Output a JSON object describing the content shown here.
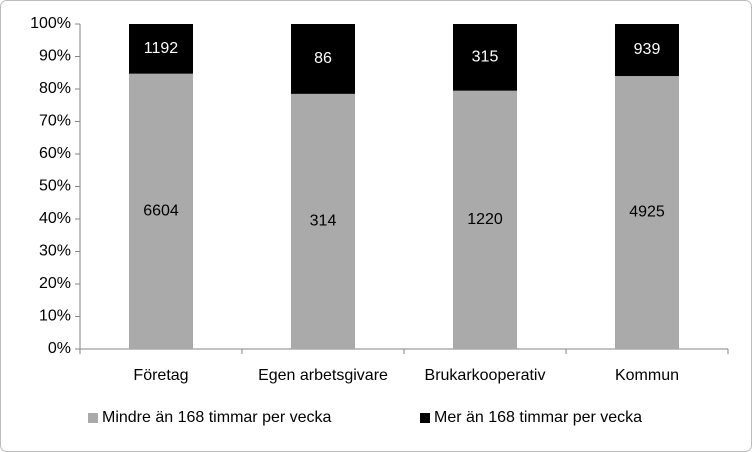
{
  "chart_data": {
    "type": "bar",
    "stacked": "percent",
    "categories": [
      "Företag",
      "Egen arbetsgivare",
      "Brukarkooperativ",
      "Kommun"
    ],
    "series": [
      {
        "name": "Mindre än 168 timmar per vecka",
        "color": "#aaaaaa",
        "label_color": "#000000",
        "values": [
          6604,
          314,
          1220,
          4925
        ]
      },
      {
        "name": "Mer än 168 timmar per vecka",
        "color": "#000000",
        "label_color": "#ffffff",
        "values": [
          1192,
          86,
          315,
          939
        ]
      }
    ],
    "ylim": [
      0,
      100
    ],
    "yticks": [
      {
        "value": 0,
        "label": "0%"
      },
      {
        "value": 10,
        "label": "10%"
      },
      {
        "value": 20,
        "label": "20%"
      },
      {
        "value": 30,
        "label": "30%"
      },
      {
        "value": 40,
        "label": "40%"
      },
      {
        "value": 50,
        "label": "50%"
      },
      {
        "value": 60,
        "label": "60%"
      },
      {
        "value": 70,
        "label": "70%"
      },
      {
        "value": 80,
        "label": "80%"
      },
      {
        "value": 90,
        "label": "90%"
      },
      {
        "value": 100,
        "label": "100%"
      }
    ],
    "grid": false,
    "legend": "bottom"
  }
}
